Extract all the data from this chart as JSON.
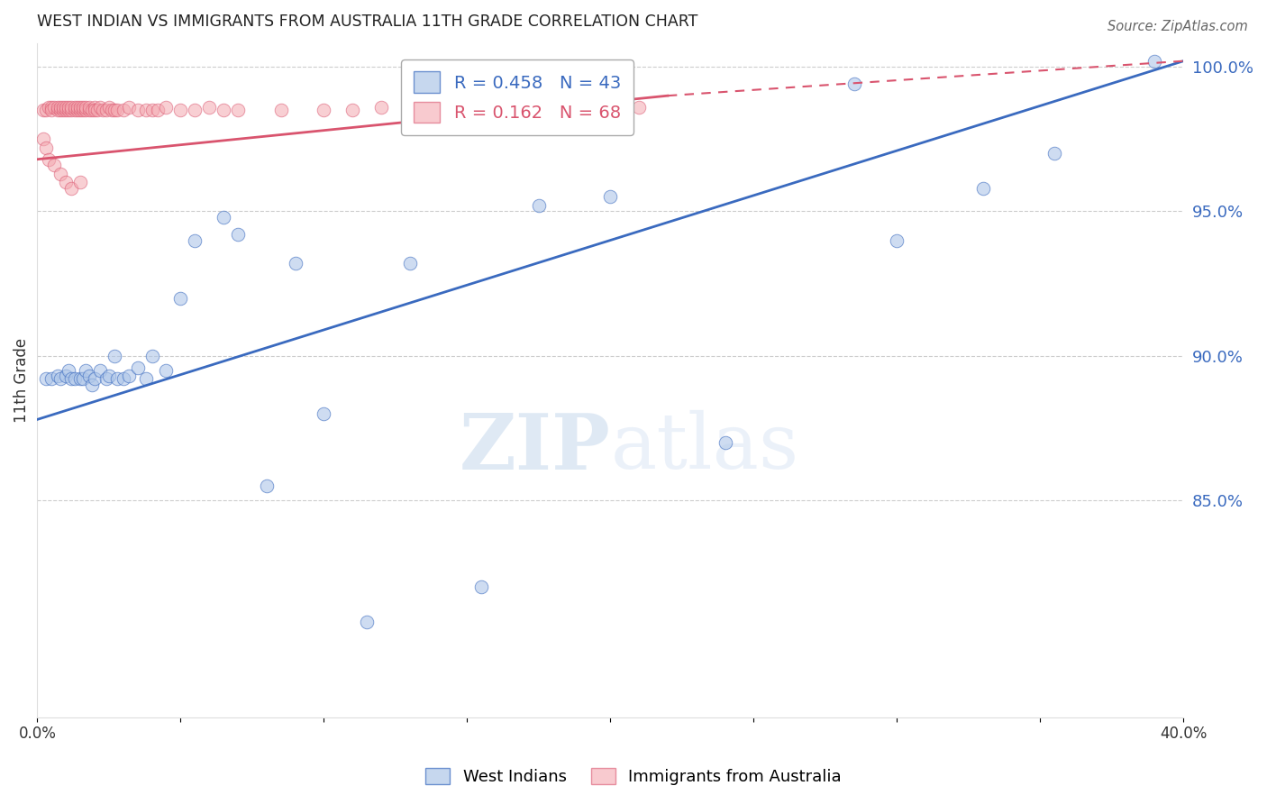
{
  "title": "WEST INDIAN VS IMMIGRANTS FROM AUSTRALIA 11TH GRADE CORRELATION CHART",
  "source": "Source: ZipAtlas.com",
  "ylabel": "11th Grade",
  "yticks": [
    "100.0%",
    "95.0%",
    "90.0%",
    "85.0%"
  ],
  "ytick_vals": [
    1.0,
    0.95,
    0.9,
    0.85
  ],
  "xlim": [
    0.0,
    0.4
  ],
  "ylim": [
    0.775,
    1.008
  ],
  "legend_blue_r": "R = 0.458",
  "legend_blue_n": "N = 43",
  "legend_pink_r": "R = 0.162",
  "legend_pink_n": "N = 68",
  "blue_color": "#aec6e8",
  "pink_color": "#f4a8b0",
  "blue_line_color": "#3a6abf",
  "pink_line_color": "#d9546e",
  "watermark_zip": "ZIP",
  "watermark_atlas": "atlas",
  "background_color": "#ffffff",
  "grid_color": "#cccccc",
  "blue_x": [
    0.003,
    0.005,
    0.007,
    0.008,
    0.01,
    0.011,
    0.012,
    0.013,
    0.015,
    0.016,
    0.017,
    0.018,
    0.019,
    0.02,
    0.022,
    0.024,
    0.025,
    0.027,
    0.028,
    0.03,
    0.032,
    0.035,
    0.038,
    0.04,
    0.045,
    0.05,
    0.055,
    0.065,
    0.07,
    0.08,
    0.09,
    0.1,
    0.115,
    0.13,
    0.155,
    0.175,
    0.2,
    0.24,
    0.285,
    0.3,
    0.33,
    0.355,
    0.39
  ],
  "blue_y": [
    0.892,
    0.892,
    0.893,
    0.892,
    0.893,
    0.895,
    0.892,
    0.892,
    0.892,
    0.892,
    0.895,
    0.893,
    0.89,
    0.892,
    0.895,
    0.892,
    0.893,
    0.9,
    0.892,
    0.892,
    0.893,
    0.896,
    0.892,
    0.9,
    0.895,
    0.92,
    0.94,
    0.948,
    0.942,
    0.855,
    0.932,
    0.88,
    0.808,
    0.932,
    0.82,
    0.952,
    0.955,
    0.87,
    0.994,
    0.94,
    0.958,
    0.97,
    1.002
  ],
  "pink_x": [
    0.002,
    0.003,
    0.004,
    0.005,
    0.005,
    0.006,
    0.007,
    0.007,
    0.008,
    0.008,
    0.009,
    0.009,
    0.01,
    0.01,
    0.011,
    0.011,
    0.012,
    0.012,
    0.013,
    0.013,
    0.014,
    0.014,
    0.015,
    0.015,
    0.016,
    0.016,
    0.017,
    0.017,
    0.018,
    0.018,
    0.019,
    0.02,
    0.02,
    0.021,
    0.022,
    0.023,
    0.024,
    0.025,
    0.026,
    0.027,
    0.028,
    0.03,
    0.032,
    0.035,
    0.038,
    0.04,
    0.042,
    0.045,
    0.05,
    0.055,
    0.06,
    0.065,
    0.07,
    0.085,
    0.1,
    0.11,
    0.12,
    0.145,
    0.17,
    0.21,
    0.002,
    0.003,
    0.004,
    0.006,
    0.008,
    0.01,
    0.012,
    0.015
  ],
  "pink_y": [
    0.985,
    0.985,
    0.986,
    0.986,
    0.985,
    0.986,
    0.985,
    0.986,
    0.985,
    0.986,
    0.985,
    0.986,
    0.985,
    0.986,
    0.985,
    0.986,
    0.985,
    0.986,
    0.985,
    0.986,
    0.985,
    0.986,
    0.985,
    0.986,
    0.985,
    0.986,
    0.985,
    0.986,
    0.985,
    0.986,
    0.985,
    0.986,
    0.985,
    0.985,
    0.986,
    0.985,
    0.985,
    0.986,
    0.985,
    0.985,
    0.985,
    0.985,
    0.986,
    0.985,
    0.985,
    0.985,
    0.985,
    0.986,
    0.985,
    0.985,
    0.986,
    0.985,
    0.985,
    0.985,
    0.985,
    0.985,
    0.986,
    0.985,
    0.985,
    0.986,
    0.975,
    0.972,
    0.968,
    0.966,
    0.963,
    0.96,
    0.958,
    0.96
  ],
  "blue_line_x": [
    0.0,
    0.4
  ],
  "blue_line_y": [
    0.878,
    1.002
  ],
  "pink_line_x": [
    0.0,
    0.22
  ],
  "pink_line_y": [
    0.968,
    0.99
  ]
}
